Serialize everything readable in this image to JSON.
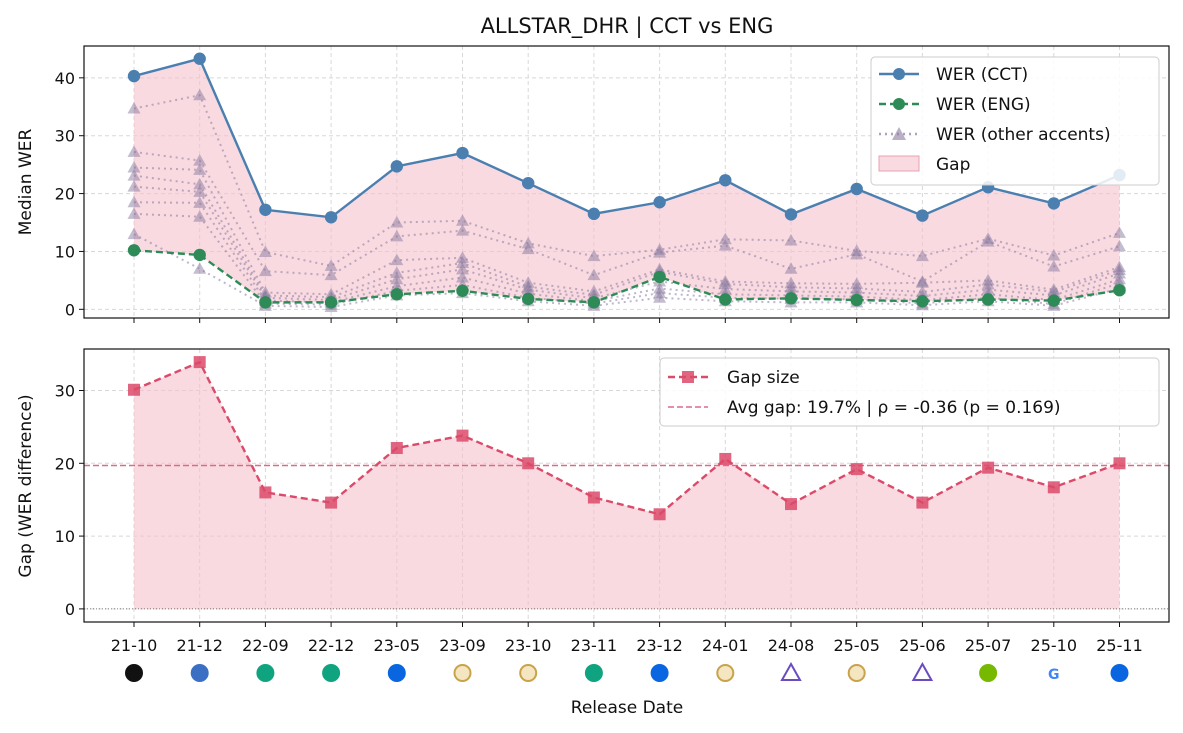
{
  "figure": {
    "title": "ALLSTAR_DHR | CCT vs ENG",
    "xlabel": "Release Date"
  },
  "chart_data": [
    {
      "type": "line",
      "title": "ALLSTAR_DHR | CCT vs ENG",
      "ylabel": "Median WER",
      "ylim": [
        -1.5,
        45.5
      ],
      "yticks": [
        0,
        10,
        20,
        30,
        40
      ],
      "grid": true,
      "legend_position": "top-right",
      "x": [
        "21-10",
        "21-12",
        "22-09",
        "22-12",
        "23-05",
        "23-09",
        "23-10",
        "23-11",
        "23-12",
        "24-01",
        "24-08",
        "25-05",
        "25-06",
        "25-07",
        "25-10",
        "25-11"
      ],
      "series": [
        {
          "name": "WER (CCT)",
          "color": "#4a7fb0",
          "style": "solid",
          "marker": "circle",
          "values": [
            40.3,
            43.3,
            17.2,
            15.9,
            24.7,
            27.0,
            21.8,
            16.5,
            18.5,
            22.3,
            16.4,
            20.8,
            16.2,
            21.1,
            18.3,
            23.2
          ]
        },
        {
          "name": "WER (ENG)",
          "color": "#2e8b57",
          "style": "dashed",
          "marker": "circle",
          "values": [
            10.2,
            9.4,
            1.2,
            1.2,
            2.6,
            3.2,
            1.8,
            1.2,
            5.6,
            1.7,
            1.9,
            1.6,
            1.4,
            1.7,
            1.5,
            3.3
          ]
        },
        {
          "name": "WER (other accents)",
          "color": "#8a7aa0",
          "style": "dotted",
          "marker": "triangle",
          "group": "others",
          "values": [
            34.7,
            37.0,
            9.9,
            7.5,
            15.0,
            15.3,
            11.4,
            9.2,
            10.3,
            12.1,
            11.9,
            10.1,
            9.2,
            12.2,
            9.3,
            13.2
          ]
        },
        {
          "name": "",
          "group": "others",
          "values": [
            27.2,
            25.7,
            6.6,
            5.9,
            12.6,
            13.6,
            10.4,
            5.9,
            9.8,
            11.0,
            7.0,
            9.5,
            4.8,
            11.7,
            7.4,
            10.9
          ]
        },
        {
          "name": "",
          "group": "others",
          "values": [
            24.5,
            24.1,
            2.9,
            2.6,
            8.5,
            8.9,
            4.6,
            3.1,
            6.9,
            4.8,
            4.5,
            4.4,
            4.6,
            5.0,
            3.4,
            7.3
          ]
        },
        {
          "name": "",
          "group": "others",
          "values": [
            23.1,
            21.6,
            2.4,
            2.1,
            6.3,
            8.0,
            3.9,
            2.5,
            6.5,
            4.4,
            3.8,
            3.6,
            3.0,
            4.3,
            3.0,
            6.8
          ]
        },
        {
          "name": "",
          "group": "others",
          "values": [
            21.2,
            20.3,
            2.0,
            1.6,
            5.2,
            6.9,
            3.4,
            1.9,
            4.8,
            3.5,
            3.1,
            2.9,
            2.3,
            3.4,
            2.4,
            6.2
          ]
        },
        {
          "name": "",
          "group": "others",
          "values": [
            18.5,
            18.4,
            1.5,
            1.2,
            4.0,
            5.5,
            2.7,
            1.4,
            3.6,
            2.6,
            2.4,
            2.2,
            1.6,
            2.6,
            1.6,
            5.2
          ]
        },
        {
          "name": "",
          "group": "others",
          "values": [
            16.5,
            16.0,
            1.0,
            0.8,
            3.2,
            4.2,
            2.0,
            1.0,
            2.8,
            2.0,
            1.8,
            1.7,
            1.0,
            2.0,
            0.9,
            4.5
          ]
        },
        {
          "name": "",
          "group": "others",
          "values": [
            13.0,
            7.0,
            0.6,
            0.4,
            2.4,
            2.8,
            1.4,
            0.6,
            2.0,
            1.4,
            1.2,
            1.2,
            0.7,
            1.4,
            0.6,
            3.6
          ]
        }
      ],
      "fill": {
        "name": "Gap",
        "color": "#f4c2cc",
        "between": [
          "WER (ENG)",
          "WER (CCT)"
        ]
      }
    },
    {
      "type": "line",
      "ylabel": "Gap (WER difference)",
      "ylim": [
        -1.8,
        35.7
      ],
      "yticks": [
        0,
        10,
        20,
        30
      ],
      "grid": true,
      "legend_position": "top-right",
      "x": [
        "21-10",
        "21-12",
        "22-09",
        "22-12",
        "23-05",
        "23-09",
        "23-10",
        "23-11",
        "23-12",
        "24-01",
        "24-08",
        "25-05",
        "25-06",
        "25-07",
        "25-10",
        "25-11"
      ],
      "series": [
        {
          "name": "Gap size",
          "color": "#dc4a6a",
          "style": "dashed",
          "marker": "square",
          "values": [
            30.1,
            33.9,
            16.0,
            14.6,
            22.1,
            23.8,
            20.0,
            15.3,
            13.0,
            20.6,
            14.4,
            19.2,
            14.6,
            19.4,
            16.7,
            20.0
          ]
        }
      ],
      "reference_line": {
        "label": "Avg gap: 19.7%  |  ρ = -0.36 (p = 0.169)",
        "value": 19.7,
        "color": "#dc6a8a"
      },
      "fill": {
        "color": "#f4c2cc"
      }
    }
  ],
  "icons": [
    "meta-ai-icon",
    "windows-icon",
    "openai-icon",
    "openai-icon",
    "meta-icon",
    "seal-icon",
    "seal-icon",
    "openai-icon",
    "meta-icon",
    "seal-icon",
    "star-logo-icon",
    "seal-icon",
    "star-logo-icon",
    "nvidia-icon",
    "google-icon",
    "meta-icon"
  ]
}
